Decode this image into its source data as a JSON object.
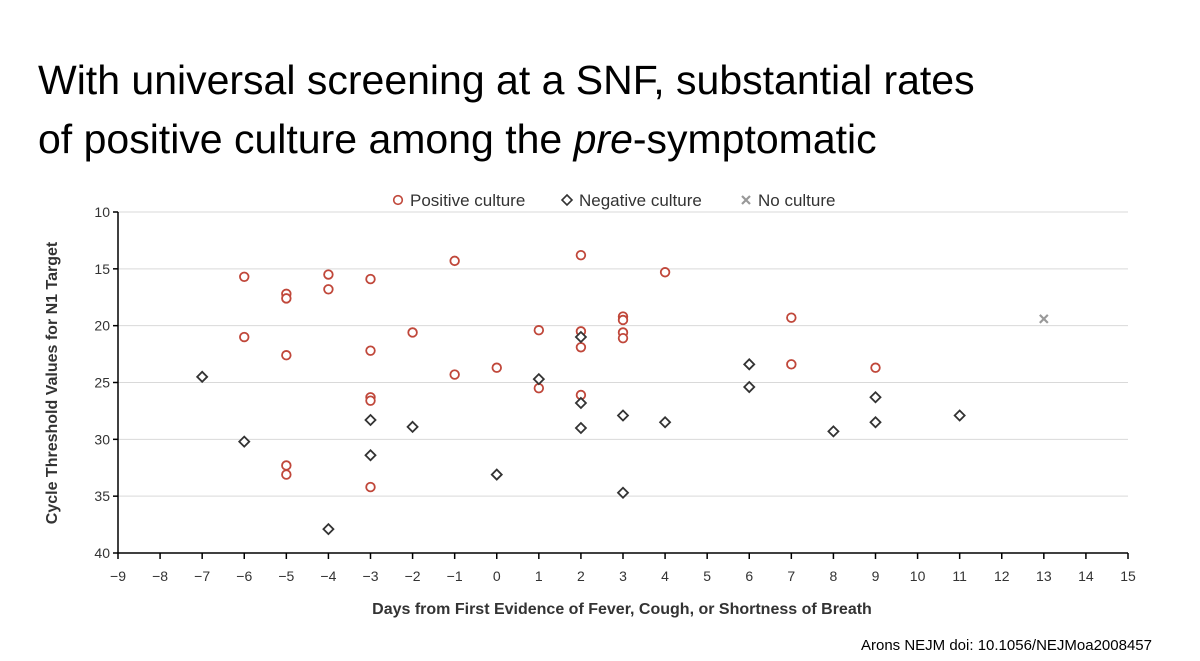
{
  "slide": {
    "title_line1": "With universal screening at a SNF, substantial rates",
    "title_line2": [
      "of positive culture among the",
      "pre",
      "-symptomatic"
    ],
    "source": "Arons NEJM  doi: 10.1056/NEJMoa2008457"
  },
  "chart_data": {
    "type": "scatter",
    "xlabel": "Days from First Evidence of Fever, Cough, or Shortness of Breath",
    "ylabel": "Cycle Threshold Values for N1 Target",
    "xlim": [
      -9,
      15
    ],
    "xticks": [
      {
        "value": -9,
        "label": "−9"
      },
      {
        "value": -8,
        "label": "−8"
      },
      {
        "value": -7,
        "label": "−7"
      },
      {
        "value": -6,
        "label": "−6"
      },
      {
        "value": -5,
        "label": "−5"
      },
      {
        "value": -4,
        "label": "−4"
      },
      {
        "value": -3,
        "label": "−3"
      },
      {
        "value": -2,
        "label": "−2"
      },
      {
        "value": -1,
        "label": "−1"
      },
      0,
      1,
      2,
      3,
      4,
      5,
      6,
      7,
      8,
      9,
      10,
      11,
      12,
      13,
      14,
      15
    ],
    "ylim": [
      10,
      40
    ],
    "y_inverted": true,
    "yticks": [
      10,
      15,
      20,
      25,
      30,
      35,
      40
    ],
    "grid": true,
    "legend": "top",
    "series": [
      {
        "name": "Positive culture",
        "color": "#c0473a",
        "marker": "circle",
        "x": [
          -6,
          -6,
          -5,
          -5,
          -5,
          -5,
          -5,
          -4,
          -4,
          -3,
          -3,
          -3,
          -3,
          -3,
          -2,
          -1,
          -1,
          0,
          1,
          1,
          2,
          2,
          2,
          2,
          3,
          3,
          3,
          3,
          4,
          7,
          7,
          9
        ],
        "values": [
          15.7,
          21.0,
          17.2,
          17.6,
          22.6,
          32.3,
          33.1,
          15.5,
          16.8,
          15.9,
          22.2,
          26.3,
          26.6,
          34.2,
          20.6,
          14.3,
          24.3,
          23.7,
          20.4,
          25.5,
          13.8,
          20.5,
          21.9,
          26.1,
          19.2,
          19.5,
          20.6,
          21.1,
          15.3,
          19.3,
          23.4,
          23.7
        ]
      },
      {
        "name": "Negative culture",
        "color": "#333333",
        "marker": "diamond",
        "x": [
          -7,
          -6,
          -4,
          -3,
          -3,
          -2,
          0,
          1,
          2,
          2,
          2,
          3,
          3,
          4,
          6,
          6,
          8,
          9,
          9,
          11
        ],
        "values": [
          24.5,
          30.2,
          37.9,
          28.3,
          31.4,
          28.9,
          33.1,
          24.7,
          21.0,
          26.8,
          29.0,
          27.9,
          34.7,
          28.5,
          23.4,
          25.4,
          29.3,
          26.3,
          28.5,
          27.9
        ]
      },
      {
        "name": "No culture",
        "color": "#999999",
        "marker": "x",
        "x": [
          13
        ],
        "values": [
          19.4
        ]
      }
    ]
  }
}
